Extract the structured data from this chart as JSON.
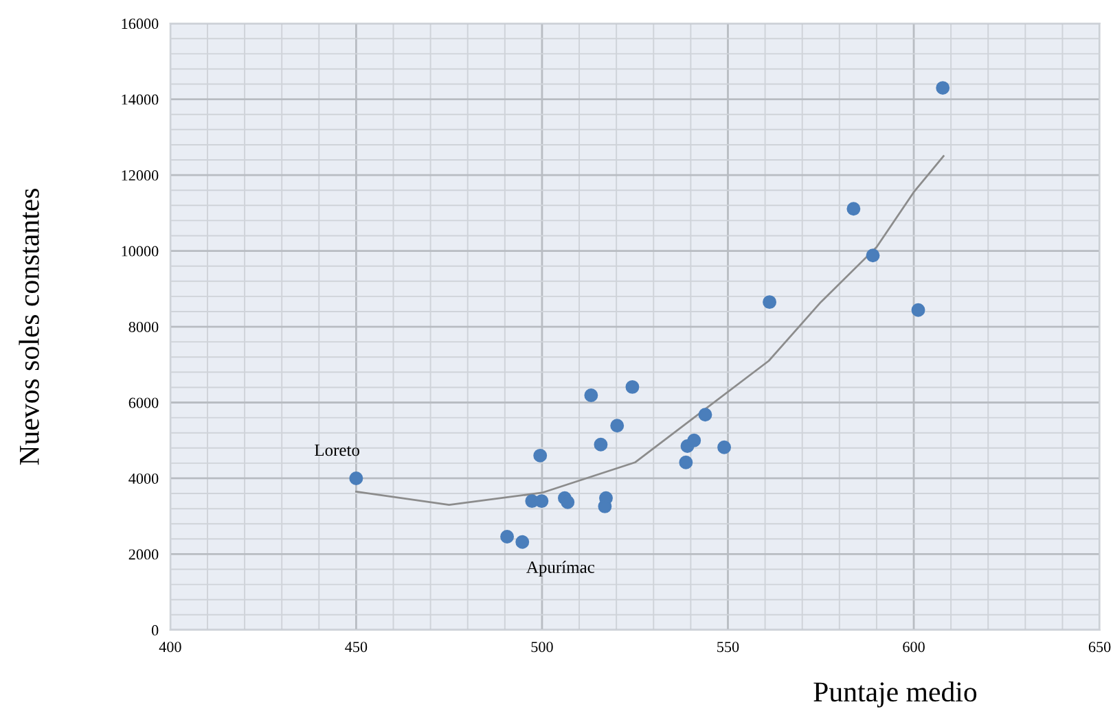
{
  "chart_data": {
    "type": "scatter",
    "xlabel": "Puntaje medio",
    "ylabel": "Nuevos soles constantes",
    "series": [
      {
        "color": "#4a7ebb",
        "marker": "circle",
        "x": [
          450,
          499.5,
          490.6,
          494.7,
          497.3,
          499.9,
          506.1,
          506.9,
          513.2,
          515.8,
          517.2,
          516.9,
          520.2,
          524.3,
          538.7,
          539.1,
          540.9,
          543.9,
          549,
          561.2,
          583.8,
          589,
          601.2,
          607.8
        ],
        "values": [
          4000,
          4600,
          2460,
          2320,
          3400,
          3400,
          3480,
          3370,
          6190,
          4890,
          3480,
          3260,
          5390,
          6410,
          4420,
          4850,
          5000,
          5680,
          4820,
          8650,
          11110,
          9880,
          8440,
          14300
        ]
      },
      {
        "type": "line",
        "color": "#8c8c8c",
        "marker": "none",
        "line_style": "solid",
        "x": [
          450,
          475,
          500,
          525,
          561,
          575,
          590,
          600,
          608
        ],
        "values": [
          3650,
          3300,
          3620,
          4420,
          7100,
          8650,
          10100,
          11550,
          12500
        ]
      }
    ],
    "annotations": [
      {
        "text": "Loreto",
        "x": 450,
        "y": 4000
      },
      {
        "text": "Apurímac",
        "x": 494.7,
        "y": 2320
      }
    ],
    "xlim": [
      400,
      650
    ],
    "ylim": [
      0,
      16000
    ],
    "xticks": [
      400,
      {
        "value": 410,
        "label": null
      },
      {
        "value": 420,
        "label": null
      },
      {
        "value": 430,
        "label": null
      },
      {
        "value": 440,
        "label": null
      },
      450,
      {
        "value": 460,
        "label": null
      },
      {
        "value": 470,
        "label": null
      },
      {
        "value": 480,
        "label": null
      },
      {
        "value": 490,
        "label": null
      },
      500,
      {
        "value": 510,
        "label": null
      },
      {
        "value": 520,
        "label": null
      },
      {
        "value": 530,
        "label": null
      },
      {
        "value": 540,
        "label": null
      },
      550,
      {
        "value": 560,
        "label": null
      },
      {
        "value": 570,
        "label": null
      },
      {
        "value": 580,
        "label": null
      },
      {
        "value": 590,
        "label": null
      },
      600,
      {
        "value": 610,
        "label": null
      },
      {
        "value": 620,
        "label": null
      },
      {
        "value": 630,
        "label": null
      },
      {
        "value": 640,
        "label": null
      },
      650
    ],
    "yticks": [
      0,
      {
        "value": 400,
        "label": null
      },
      {
        "value": 800,
        "label": null
      },
      {
        "value": 1200,
        "label": null
      },
      {
        "value": 1600,
        "label": null
      },
      2000,
      {
        "value": 2400,
        "label": null
      },
      {
        "value": 2800,
        "label": null
      },
      {
        "value": 3200,
        "label": null
      },
      {
        "value": 3600,
        "label": null
      },
      4000,
      {
        "value": 4400,
        "label": null
      },
      {
        "value": 4800,
        "label": null
      },
      {
        "value": 5200,
        "label": null
      },
      {
        "value": 5600,
        "label": null
      },
      6000,
      {
        "value": 6400,
        "label": null
      },
      {
        "value": 6800,
        "label": null
      },
      {
        "value": 7200,
        "label": null
      },
      {
        "value": 7600,
        "label": null
      },
      8000,
      {
        "value": 8400,
        "label": null
      },
      {
        "value": 8800,
        "label": null
      },
      {
        "value": 9200,
        "label": null
      },
      {
        "value": 9600,
        "label": null
      },
      10000,
      {
        "value": 10400,
        "label": null
      },
      {
        "value": 10800,
        "label": null
      },
      {
        "value": 11200,
        "label": null
      },
      {
        "value": 11600,
        "label": null
      },
      12000,
      {
        "value": 12400,
        "label": null
      },
      {
        "value": 12800,
        "label": null
      },
      {
        "value": 13200,
        "label": null
      },
      {
        "value": 13600,
        "label": null
      },
      14000,
      {
        "value": 14400,
        "label": null
      },
      {
        "value": 14800,
        "label": null
      },
      {
        "value": 15200,
        "label": null
      },
      {
        "value": 15600,
        "label": null
      },
      16000
    ],
    "grid": true,
    "legend": false
  }
}
